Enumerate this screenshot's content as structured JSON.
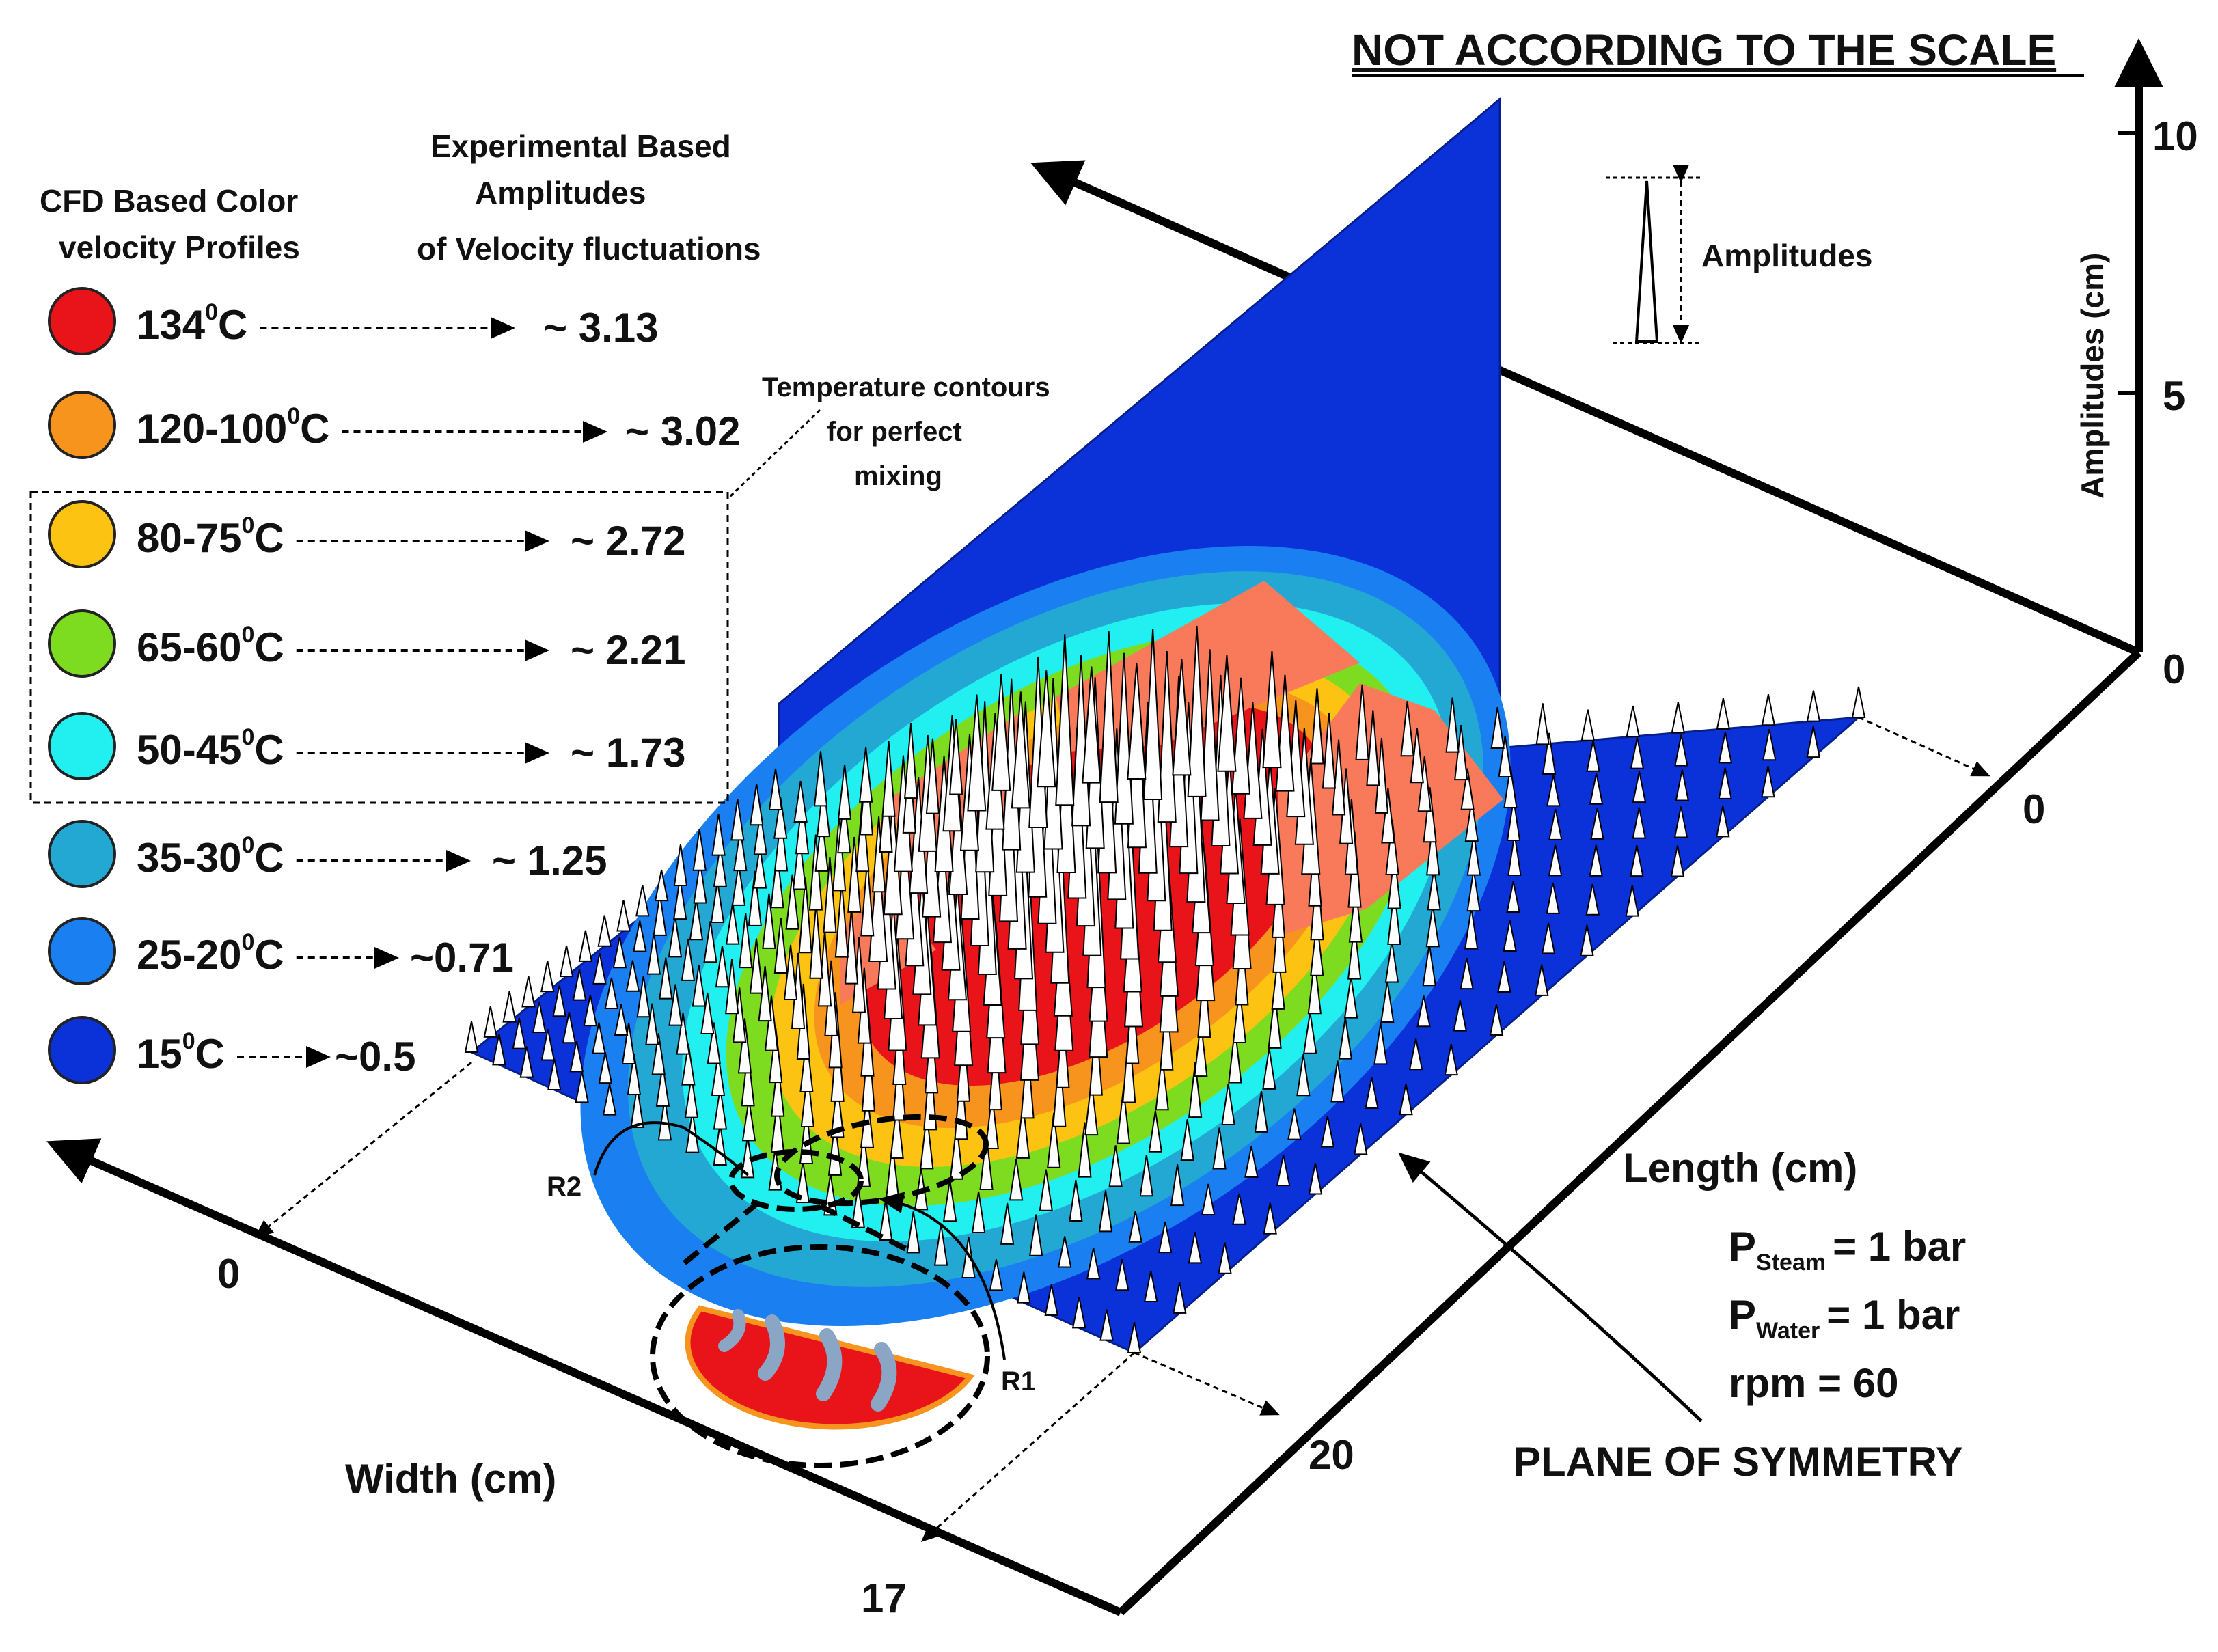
{
  "title": "NOT ACCORDING TO THE SCALE",
  "legend": {
    "header_cfd_line1": "CFD Based Color",
    "header_cfd_line2": "velocity Profiles",
    "header_exp_line1": "Experimental Based",
    "header_exp_line2": "Amplitudes",
    "header_exp_line3": "of Velocity fluctuations",
    "items": [
      {
        "label": "134",
        "unit": "C",
        "sup": "0",
        "value": "~ 3.13",
        "color": "#e8141a"
      },
      {
        "label": "120-100",
        "unit": "C",
        "sup": "0",
        "value": "~ 3.02",
        "color": "#f7941d"
      },
      {
        "label": "80-75",
        "unit": "C",
        "sup": "0",
        "value": "~ 2.72",
        "color": "#fdc312"
      },
      {
        "label": "65-60",
        "unit": "C",
        "sup": "0",
        "value": "~ 2.21",
        "color": "#7ddc1f"
      },
      {
        "label": "50-45",
        "unit": "C",
        "sup": "0",
        "value": "~ 1.73",
        "color": "#22f0f0"
      },
      {
        "label": "35-30",
        "unit": "C",
        "sup": "0",
        "value": "~ 1.25",
        "color": "#23a8d4"
      },
      {
        "label": "25-20",
        "unit": "C",
        "sup": "0",
        "value": "~0.71",
        "color": "#1a7ff0"
      },
      {
        "label": "15",
        "unit": "C",
        "sup": "0",
        "value": "~0.5",
        "color": "#0a32d8"
      }
    ]
  },
  "annotations": {
    "contours_line1": "Temperature contours",
    "contours_line2": "for perfect",
    "contours_line3": "mixing",
    "amplitudes_label": "Amplitudes",
    "r1": "R1",
    "r2": "R2",
    "plane_of_symmetry": "PLANE OF SYMMETRY"
  },
  "axes": {
    "amplitude_axis_label": "Amplitudes (cm)",
    "amplitude_ticks": [
      "10",
      "5",
      "0"
    ],
    "length_label": "Length (cm)",
    "width_label": "Width (cm)",
    "length_ticks": [
      "0",
      "20"
    ],
    "width_ticks": [
      "0",
      "17"
    ]
  },
  "conditions": {
    "p_steam_base": "P",
    "p_steam_sub": "Steam",
    "p_steam_value": "= 1 bar",
    "p_water_base": "P",
    "p_water_sub": "Water",
    "p_water_value": "= 1 bar",
    "rpm": "rpm  = 60"
  },
  "colors": {
    "plane_blue": "#0a32d8",
    "red": "#e8141a",
    "salmon": "#f87a5a",
    "orange": "#f7941d",
    "yellow": "#fdc312",
    "green": "#7ddc1f",
    "cyan": "#22f0f0",
    "teal": "#23a8d4",
    "midblue": "#1a7ff0"
  }
}
